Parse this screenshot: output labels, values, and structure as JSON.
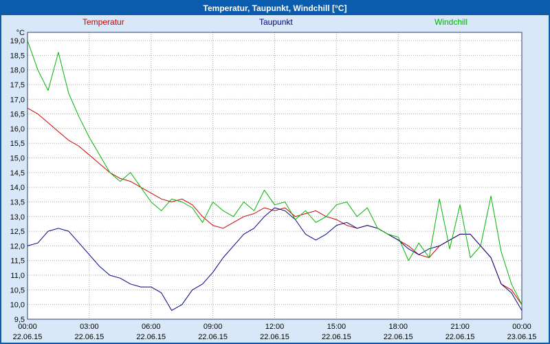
{
  "window": {
    "title_note": "chart title shown in blue title bar"
  },
  "chart_data": {
    "type": "line",
    "title": "Temperatur, Taupunkt, Windchill [°C]",
    "legend_position": "top",
    "axes": {
      "y_unit": "°C",
      "y_min": 9.5,
      "y_max": 19.0,
      "y_step": 0.5,
      "x_min": 0,
      "x_max": 24,
      "x_step_hours": 0.5,
      "grid": "dashed",
      "y_tick_labels": [
        "19,0",
        "18,5",
        "18,0",
        "17,5",
        "17,0",
        "16,5",
        "16,0",
        "15,5",
        "15,0",
        "14,5",
        "14,0",
        "13,5",
        "13,0",
        "12,5",
        "12,0",
        "11,5",
        "11,0",
        "10,5",
        "10,0",
        "9,5"
      ],
      "x_ticks": [
        {
          "hour": 0,
          "time": "00:00",
          "date": "22.06.15"
        },
        {
          "hour": 3,
          "time": "03:00",
          "date": "22.06.15"
        },
        {
          "hour": 6,
          "time": "06:00",
          "date": "22.06.15"
        },
        {
          "hour": 9,
          "time": "09:00",
          "date": "22.06.15"
        },
        {
          "hour": 12,
          "time": "12:00",
          "date": "22.06.15"
        },
        {
          "hour": 15,
          "time": "15:00",
          "date": "22.06.15"
        },
        {
          "hour": 18,
          "time": "18:00",
          "date": "22.06.15"
        },
        {
          "hour": 21,
          "time": "21:00",
          "date": "22.06.15"
        },
        {
          "hour": 24,
          "time": "00:00",
          "date": "23.06.15"
        }
      ]
    },
    "x_hours": [
      0,
      0.5,
      1,
      1.5,
      2,
      2.5,
      3,
      3.5,
      4,
      4.5,
      5,
      5.5,
      6,
      6.5,
      7,
      7.5,
      8,
      8.5,
      9,
      9.5,
      10,
      10.5,
      11,
      11.5,
      12,
      12.5,
      13,
      13.5,
      14,
      14.5,
      15,
      15.5,
      16,
      16.5,
      17,
      17.5,
      18,
      18.5,
      19,
      19.5,
      20,
      20.5,
      21,
      21.5,
      22,
      22.5,
      23,
      23.5,
      24
    ],
    "series": [
      {
        "name": "Temperatur",
        "color": "#cc0000",
        "values": [
          16.7,
          16.5,
          16.2,
          15.9,
          15.6,
          15.4,
          15.1,
          14.8,
          14.5,
          14.3,
          14.2,
          14.0,
          13.8,
          13.6,
          13.5,
          13.6,
          13.4,
          13.0,
          12.7,
          12.6,
          12.8,
          13.0,
          13.1,
          13.3,
          13.2,
          13.3,
          13.0,
          13.1,
          13.2,
          13.0,
          12.9,
          12.7,
          12.6,
          12.7,
          12.6,
          12.4,
          12.2,
          12.0,
          11.7,
          11.6,
          12.0,
          12.2,
          12.4,
          12.4,
          12.0,
          11.6,
          10.7,
          10.5,
          10.0
        ]
      },
      {
        "name": "Taupunkt",
        "color": "#000080",
        "values": [
          12.0,
          12.1,
          12.5,
          12.6,
          12.5,
          12.1,
          11.7,
          11.3,
          11.0,
          10.9,
          10.7,
          10.6,
          10.6,
          10.4,
          9.8,
          10.0,
          10.5,
          10.7,
          11.1,
          11.6,
          12.0,
          12.4,
          12.6,
          13.0,
          13.3,
          13.2,
          12.9,
          12.4,
          12.2,
          12.4,
          12.7,
          12.8,
          12.6,
          12.7,
          12.6,
          12.4,
          12.2,
          11.9,
          11.7,
          11.9,
          12.0,
          12.2,
          12.4,
          12.4,
          12.0,
          11.6,
          10.7,
          10.4,
          9.8
        ]
      },
      {
        "name": "Windchill",
        "color": "#00b400",
        "values": [
          19.0,
          18.0,
          17.3,
          18.6,
          17.2,
          16.4,
          15.7,
          15.1,
          14.5,
          14.2,
          14.5,
          14.0,
          13.5,
          13.2,
          13.6,
          13.5,
          13.3,
          12.8,
          13.5,
          13.2,
          13.0,
          13.5,
          13.2,
          13.9,
          13.4,
          13.5,
          12.9,
          13.2,
          12.8,
          13.0,
          13.4,
          13.5,
          13.0,
          13.3,
          12.6,
          12.4,
          12.3,
          11.5,
          12.1,
          11.6,
          13.6,
          11.9,
          13.4,
          11.6,
          12.0,
          13.7,
          11.8,
          10.7,
          10.0
        ]
      }
    ],
    "colors": {
      "titlebar": "#0b5cad",
      "background": "#d9e8f8",
      "plot_background": "#ffffff",
      "grid": "#a6a6a6",
      "plot_border": "#2b3f66",
      "tick_text": "#000000"
    }
  }
}
